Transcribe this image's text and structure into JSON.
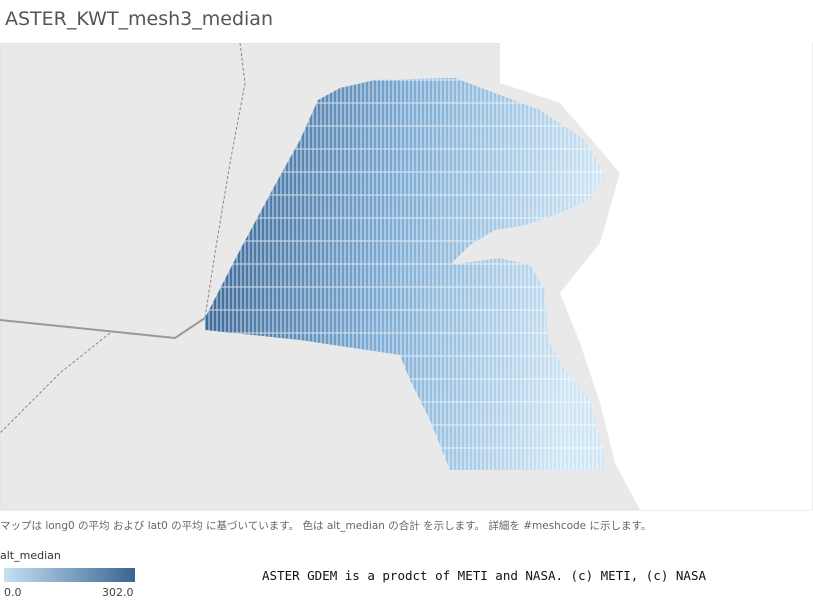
{
  "header": {
    "title": "ASTER_KWT_mesh3_median"
  },
  "caption": "マップは long0 の平均 および lat0 の平均 に基づいています。 色は alt_median の合計 を示します。 詳細を #meshcode に示します。",
  "legend": {
    "title": "alt_median",
    "min": "0.0",
    "max": "302.0"
  },
  "credit": "ASTER GDEM is a prodct of METI and NASA. (c) METI, (c) NASA"
}
